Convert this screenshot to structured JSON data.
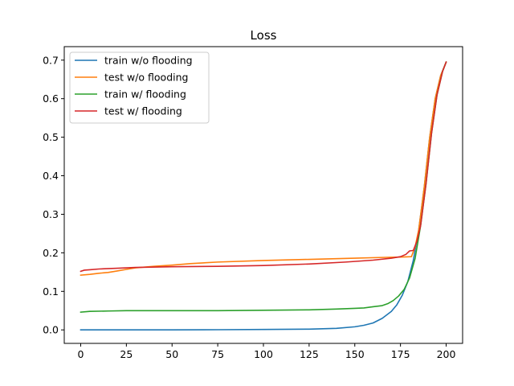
{
  "chart_data": {
    "type": "line",
    "title": "Loss",
    "xlabel": "",
    "ylabel": "",
    "xlim": [
      -9,
      209
    ],
    "ylim": [
      -0.035,
      0.735
    ],
    "xticks": [
      0,
      25,
      50,
      75,
      100,
      125,
      150,
      175,
      200
    ],
    "yticks": [
      0.0,
      0.1,
      0.2,
      0.3,
      0.4,
      0.5,
      0.6,
      0.7
    ],
    "ytick_labels": [
      "0.0",
      "0.1",
      "0.2",
      "0.3",
      "0.4",
      "0.5",
      "0.6",
      "0.7"
    ],
    "grid": false,
    "legend": "top-left",
    "series": [
      {
        "name": "train w/o flooding",
        "color": "#1f77b4",
        "points": [
          [
            0,
            0.0
          ],
          [
            25,
            0.0
          ],
          [
            50,
            0.0
          ],
          [
            75,
            0.0005
          ],
          [
            100,
            0.0012
          ],
          [
            125,
            0.002
          ],
          [
            140,
            0.004
          ],
          [
            150,
            0.008
          ],
          [
            155,
            0.012
          ],
          [
            160,
            0.018
          ],
          [
            165,
            0.03
          ],
          [
            170,
            0.048
          ],
          [
            173,
            0.065
          ],
          [
            176,
            0.09
          ],
          [
            179,
            0.125
          ],
          [
            182,
            0.18
          ],
          [
            185,
            0.26
          ],
          [
            188,
            0.37
          ],
          [
            191,
            0.5
          ],
          [
            194,
            0.6
          ],
          [
            197,
            0.66
          ],
          [
            200,
            0.695
          ]
        ]
      },
      {
        "name": "test w/o flooding",
        "color": "#ff7f0e",
        "points": [
          [
            0,
            0.142
          ],
          [
            5,
            0.144
          ],
          [
            10,
            0.147
          ],
          [
            15,
            0.149
          ],
          [
            20,
            0.153
          ],
          [
            25,
            0.157
          ],
          [
            30,
            0.161
          ],
          [
            40,
            0.165
          ],
          [
            50,
            0.168
          ],
          [
            60,
            0.172
          ],
          [
            75,
            0.176
          ],
          [
            100,
            0.18
          ],
          [
            125,
            0.183
          ],
          [
            150,
            0.186
          ],
          [
            165,
            0.188
          ],
          [
            175,
            0.189
          ],
          [
            181,
            0.19
          ],
          [
            183,
            0.215
          ],
          [
            185,
            0.26
          ],
          [
            188,
            0.37
          ],
          [
            191,
            0.5
          ],
          [
            194,
            0.6
          ],
          [
            197,
            0.66
          ],
          [
            200,
            0.695
          ]
        ]
      },
      {
        "name": "train w/ flooding",
        "color": "#2ca02c",
        "points": [
          [
            0,
            0.046
          ],
          [
            5,
            0.048
          ],
          [
            15,
            0.049
          ],
          [
            25,
            0.05
          ],
          [
            50,
            0.05
          ],
          [
            75,
            0.05
          ],
          [
            100,
            0.051
          ],
          [
            125,
            0.052
          ],
          [
            140,
            0.054
          ],
          [
            150,
            0.056
          ],
          [
            155,
            0.057
          ],
          [
            160,
            0.06
          ],
          [
            165,
            0.063
          ],
          [
            168,
            0.068
          ],
          [
            171,
            0.076
          ],
          [
            174,
            0.088
          ],
          [
            177,
            0.105
          ],
          [
            180,
            0.135
          ],
          [
            183,
            0.185
          ],
          [
            186,
            0.27
          ],
          [
            189,
            0.38
          ],
          [
            192,
            0.51
          ],
          [
            195,
            0.61
          ],
          [
            198,
            0.67
          ],
          [
            200,
            0.695
          ]
        ]
      },
      {
        "name": "test w/ flooding",
        "color": "#d62728",
        "points": [
          [
            0,
            0.152
          ],
          [
            2,
            0.155
          ],
          [
            5,
            0.156
          ],
          [
            10,
            0.158
          ],
          [
            20,
            0.16
          ],
          [
            30,
            0.162
          ],
          [
            50,
            0.164
          ],
          [
            75,
            0.165
          ],
          [
            100,
            0.167
          ],
          [
            125,
            0.171
          ],
          [
            145,
            0.176
          ],
          [
            160,
            0.181
          ],
          [
            170,
            0.186
          ],
          [
            175,
            0.19
          ],
          [
            178,
            0.196
          ],
          [
            180,
            0.205
          ],
          [
            182,
            0.206
          ],
          [
            184,
            0.23
          ],
          [
            186,
            0.27
          ],
          [
            189,
            0.38
          ],
          [
            192,
            0.51
          ],
          [
            195,
            0.61
          ],
          [
            198,
            0.67
          ],
          [
            200,
            0.695
          ]
        ]
      }
    ]
  }
}
